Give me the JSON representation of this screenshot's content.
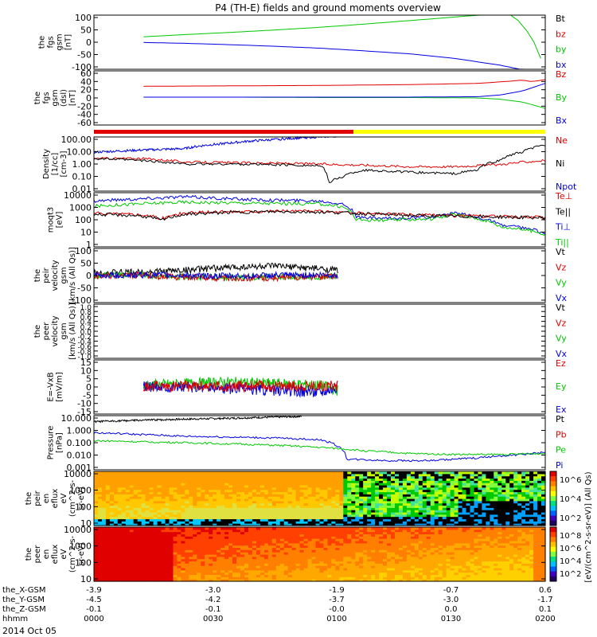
{
  "title": "P4 (TH-E) fields and ground moments overview",
  "date_label": "2014 Oct 05",
  "colors": {
    "black": "#000000",
    "red": "#e00000",
    "green": "#00c800",
    "blue": "#0000e0",
    "yellow": "#ffff00"
  },
  "chart_data": [
    {
      "type": "line",
      "panel": "fgs-gsm",
      "ylabel": [
        "the",
        "fgs",
        "gsm",
        "[nT]"
      ],
      "yticks": [
        "100",
        "50",
        "0",
        "-50",
        "-100"
      ],
      "ylim": [
        -100,
        100
      ],
      "legend": [
        {
          "name": "Bt",
          "color": "black"
        },
        {
          "name": "bz",
          "color": "red"
        },
        {
          "name": "by",
          "color": "green"
        },
        {
          "name": "bx",
          "color": "blue"
        }
      ],
      "series": [
        {
          "name": "by",
          "color": "green",
          "x": [
            0.11,
            0.2,
            0.3,
            0.4,
            0.5,
            0.6,
            0.7,
            0.8,
            0.9,
            0.95,
            0.975
          ],
          "y": [
            20,
            28,
            36,
            45,
            55,
            67,
            80,
            93,
            106,
            110,
            100
          ]
        },
        {
          "name": "bx",
          "color": "blue",
          "x": [
            0.11,
            0.2,
            0.3,
            0.4,
            0.5,
            0.6,
            0.7,
            0.8,
            0.9,
            0.95,
            0.975
          ],
          "y": [
            -1,
            -4,
            -9,
            -15,
            -22,
            -32,
            -43,
            -60,
            -85,
            -102,
            -105
          ]
        },
        {
          "name": "by",
          "color": "green",
          "x": [
            0.915,
            0.94,
            0.96,
            0.975,
            0.99
          ],
          "y": [
            110,
            80,
            40,
            0,
            -60
          ]
        }
      ]
    },
    {
      "type": "line",
      "panel": "fgs-gsm-dsl",
      "ylabel": [
        "the",
        "fgs",
        "gsm",
        "(dsl)",
        "[nT]"
      ],
      "yticks": [
        "60",
        "40",
        "20",
        "0",
        "-20",
        "-40",
        "-60"
      ],
      "ylim": [
        -70,
        60
      ],
      "legend": [
        {
          "name": "Bz",
          "color": "red"
        },
        {
          "name": "By",
          "color": "green"
        },
        {
          "name": "Bx",
          "color": "blue"
        }
      ],
      "series": [
        {
          "name": "Bz",
          "color": "red",
          "x": [
            0.11,
            0.3,
            0.5,
            0.7,
            0.85,
            0.92,
            0.95,
            0.97,
            1.0
          ],
          "y": [
            23,
            24,
            25,
            27,
            30,
            35,
            38,
            34,
            39
          ]
        },
        {
          "name": "By",
          "color": "green",
          "x": [
            0.11,
            0.3,
            0.5,
            0.7,
            0.85,
            0.9,
            0.95,
            1.0
          ],
          "y": [
            -3,
            -3,
            -4,
            -4,
            -5,
            -8,
            -15,
            -30
          ]
        },
        {
          "name": "Bx",
          "color": "blue",
          "x": [
            0.11,
            0.3,
            0.5,
            0.7,
            0.85,
            0.9,
            0.95,
            1.0
          ],
          "y": [
            -3,
            -3,
            -3,
            -3,
            -2,
            2,
            12,
            30
          ]
        }
      ],
      "bar": [
        {
          "x0": 0.0,
          "x1": 0.575,
          "color": "red"
        },
        {
          "x0": 0.575,
          "x1": 1.0,
          "color": "yellow"
        }
      ]
    },
    {
      "type": "line",
      "panel": "density",
      "log": true,
      "ylabel": [
        "Density",
        "[1/cc]",
        "[cm-3]"
      ],
      "yticks": [
        "100.00",
        "10.00",
        "1.00",
        "0.10",
        "0.01"
      ],
      "ylim": [
        0.005,
        200
      ],
      "legend": [
        {
          "name": "Ne",
          "color": "red"
        },
        {
          "name": "Ni",
          "color": "black"
        },
        {
          "name": "Npot",
          "color": "blue"
        }
      ],
      "series": [
        {
          "name": "Npot",
          "color": "blue",
          "x": [
            0.0,
            0.1,
            0.2,
            0.3,
            0.4,
            0.5,
            0.55
          ],
          "y": [
            10,
            15,
            20,
            60,
            120,
            200,
            250
          ]
        },
        {
          "name": "Ne",
          "color": "red",
          "x": [
            0.0,
            0.1,
            0.2,
            0.3,
            0.4,
            0.5,
            0.6,
            0.7,
            0.8,
            0.9,
            1.0
          ],
          "y": [
            3,
            3,
            1.5,
            1.3,
            1.2,
            1.0,
            0.8,
            0.6,
            0.6,
            0.9,
            2
          ]
        },
        {
          "name": "Ni",
          "color": "black",
          "x": [
            0.0,
            0.1,
            0.2,
            0.3,
            0.4,
            0.5,
            0.52,
            0.55,
            0.6,
            0.7,
            0.8,
            0.85,
            0.9,
            0.95,
            1.0
          ],
          "y": [
            3,
            2,
            1,
            1,
            0.9,
            0.7,
            0.02,
            0.08,
            0.3,
            0.2,
            0.15,
            0.3,
            2,
            10,
            40
          ]
        }
      ]
    },
    {
      "type": "line",
      "panel": "temperature",
      "log": true,
      "ylabel": [
        "moqt3",
        "[eV]"
      ],
      "yticks": [
        "10000",
        "1000",
        "100",
        "10",
        "1"
      ],
      "ylim": [
        1,
        10000
      ],
      "legend": [
        {
          "name": "Te⊥",
          "color": "red"
        },
        {
          "name": "Te||",
          "color": "black"
        },
        {
          "name": "Ti⊥",
          "color": "blue"
        },
        {
          "name": "Ti||",
          "color": "green"
        }
      ],
      "series": [
        {
          "name": "Ti⊥",
          "color": "blue",
          "x": [
            0.0,
            0.1,
            0.2,
            0.3,
            0.4,
            0.5,
            0.55,
            0.58,
            0.65,
            0.75,
            0.8,
            0.85,
            0.9,
            1.0
          ],
          "y": [
            2500,
            3500,
            5000,
            3500,
            2800,
            2500,
            1500,
            150,
            120,
            150,
            300,
            150,
            40,
            10
          ]
        },
        {
          "name": "Ti||",
          "color": "green",
          "x": [
            0.0,
            0.1,
            0.2,
            0.3,
            0.4,
            0.5,
            0.55,
            0.58,
            0.65,
            0.75,
            0.8,
            0.85,
            0.9,
            1.0
          ],
          "y": [
            1000,
            1500,
            2000,
            1800,
            1600,
            1500,
            900,
            100,
            90,
            120,
            250,
            120,
            30,
            8
          ]
        },
        {
          "name": "Te⊥",
          "color": "red",
          "x": [
            0.0,
            0.1,
            0.15,
            0.2,
            0.3,
            0.4,
            0.5,
            0.6,
            0.7,
            0.8,
            0.9,
            1.0
          ],
          "y": [
            300,
            250,
            120,
            300,
            400,
            450,
            420,
            300,
            230,
            200,
            170,
            150
          ]
        },
        {
          "name": "Te||",
          "color": "black",
          "x": [
            0.0,
            0.1,
            0.15,
            0.2,
            0.3,
            0.4,
            0.5,
            0.6,
            0.7,
            0.8,
            0.9,
            1.0
          ],
          "y": [
            250,
            200,
            90,
            250,
            350,
            400,
            380,
            280,
            210,
            180,
            160,
            140
          ]
        }
      ]
    },
    {
      "type": "line",
      "panel": "peir-velocity",
      "ylabel": [
        "the",
        "peir",
        "velocity",
        "gsm",
        "[km/s (All Qs)]"
      ],
      "yticks": [
        "100",
        "50",
        "0",
        "-50",
        "-100"
      ],
      "ylim": [
        -100,
        100
      ],
      "legend": [
        {
          "name": "Vt",
          "color": "black"
        },
        {
          "name": "Vz",
          "color": "red"
        },
        {
          "name": "Vy",
          "color": "green"
        },
        {
          "name": "Vx",
          "color": "blue"
        }
      ],
      "series": [
        {
          "name": "Vt",
          "color": "black",
          "x": [
            0.0,
            0.1,
            0.2,
            0.3,
            0.4,
            0.5,
            0.54
          ],
          "y": [
            10,
            12,
            20,
            30,
            35,
            25,
            20
          ]
        },
        {
          "name": "Vy",
          "color": "green",
          "x": [
            0.0,
            0.1,
            0.2,
            0.3,
            0.4,
            0.5,
            0.54
          ],
          "y": [
            0,
            2,
            -5,
            -8,
            -6,
            -4,
            0
          ]
        },
        {
          "name": "Vz",
          "color": "red",
          "x": [
            0.0,
            0.1,
            0.2,
            0.3,
            0.4,
            0.5,
            0.54
          ],
          "y": [
            -2,
            0,
            -6,
            -10,
            -8,
            -5,
            -2
          ]
        },
        {
          "name": "Vx",
          "color": "blue",
          "x": [
            0.0,
            0.1,
            0.2,
            0.3,
            0.4,
            0.5,
            0.54
          ],
          "y": [
            0,
            2,
            0,
            -2,
            0,
            2,
            0
          ]
        }
      ]
    },
    {
      "type": "line",
      "panel": "peer-velocity",
      "ylabel": [
        "the",
        "peer",
        "velocity",
        "gsm",
        "[km/s (All Qs)]"
      ],
      "yticks": [
        "1.0",
        "0.8",
        "0.6",
        "0.4",
        "0.2",
        "0.0",
        "-0.2",
        "-0.4",
        "-0.6",
        "-0.8",
        "-1.0"
      ],
      "ylim": [
        -1,
        1
      ],
      "legend": [
        {
          "name": "Vt",
          "color": "black"
        },
        {
          "name": "Vz",
          "color": "red"
        },
        {
          "name": "Vy",
          "color": "green"
        },
        {
          "name": "Vx",
          "color": "blue"
        }
      ],
      "series": []
    },
    {
      "type": "line",
      "panel": "efield",
      "ylabel": [
        "E=-VxB",
        "[mV/m]"
      ],
      "yticks": [
        "15",
        "10",
        "5",
        "0",
        "-5",
        "-10",
        "-15"
      ],
      "ylim": [
        -17,
        17
      ],
      "legend": [
        {
          "name": "Ez",
          "color": "red"
        },
        {
          "name": "Ey",
          "color": "green"
        },
        {
          "name": "Ex",
          "color": "blue"
        }
      ],
      "series": [
        {
          "name": "Ey",
          "color": "green",
          "x": [
            0.11,
            0.2,
            0.3,
            0.4,
            0.5,
            0.54
          ],
          "y": [
            1,
            2,
            3,
            2,
            1,
            -2
          ]
        },
        {
          "name": "Ex",
          "color": "blue",
          "x": [
            0.11,
            0.2,
            0.3,
            0.4,
            0.5,
            0.54
          ],
          "y": [
            0,
            0,
            -1,
            -2,
            -3,
            0
          ]
        },
        {
          "name": "Ez",
          "color": "red",
          "x": [
            0.11,
            0.54
          ],
          "y": [
            0.5,
            0.5
          ]
        }
      ]
    },
    {
      "type": "line",
      "panel": "pressure",
      "log": true,
      "ylabel": [
        "Pressure",
        "[nPa]"
      ],
      "yticks": [
        "10.000",
        "1.000",
        "0.100",
        "0.010",
        "0.001"
      ],
      "ylim": [
        0.0005,
        20
      ],
      "legend": [
        {
          "name": "Pt",
          "color": "black"
        },
        {
          "name": "Pb",
          "color": "red"
        },
        {
          "name": "Pe",
          "color": "green"
        },
        {
          "name": "Pi",
          "color": "blue"
        }
      ],
      "series": [
        {
          "name": "Pt",
          "color": "black",
          "x": [
            0.0,
            0.1,
            0.2,
            0.3,
            0.4,
            0.46
          ],
          "y": [
            6,
            8,
            10,
            12,
            15,
            17
          ]
        },
        {
          "name": "Pi",
          "color": "blue",
          "x": [
            0.0,
            0.1,
            0.2,
            0.3,
            0.4,
            0.5,
            0.54,
            0.56,
            0.65,
            0.75,
            0.85,
            0.95,
            1.0
          ],
          "y": [
            0.7,
            0.5,
            0.35,
            0.3,
            0.25,
            0.18,
            0.05,
            0.004,
            0.003,
            0.003,
            0.005,
            0.01,
            0.015
          ]
        },
        {
          "name": "Pe",
          "color": "green",
          "x": [
            0.0,
            0.1,
            0.2,
            0.3,
            0.4,
            0.5,
            0.6,
            0.7,
            0.8,
            0.9,
            1.0
          ],
          "y": [
            0.15,
            0.12,
            0.1,
            0.08,
            0.06,
            0.04,
            0.02,
            0.012,
            0.01,
            0.01,
            0.012
          ]
        }
      ]
    },
    {
      "type": "heatmap",
      "panel": "peir-spectrogram",
      "log": true,
      "ylabel": [
        "the",
        "peir",
        "en",
        "eflux",
        "eV",
        "(cm^2-s-",
        "sr-eV)"
      ],
      "yticks": [
        "10000",
        "1000",
        "100",
        "10"
      ],
      "ylim": [
        6,
        20000
      ]
    },
    {
      "type": "heatmap",
      "panel": "peer-spectrogram",
      "log": true,
      "ylabel": [
        "the",
        "peer",
        "en",
        "eflux",
        "eV",
        "(cm^2-s-",
        "sr-eV)"
      ],
      "yticks": [
        "10000",
        "1000",
        "100",
        "10"
      ],
      "ylim": [
        6,
        20000
      ]
    }
  ],
  "colorbar": {
    "title": "[eV/(cm^2-s-sr-eV)] (All Qs)",
    "top_ticks": [
      "10^6",
      "10^4",
      "10^2"
    ],
    "bottom_ticks": [
      "10^8",
      "10^6",
      "10^4",
      "10^2"
    ]
  },
  "xaxis": {
    "rows": [
      {
        "label": "the_X-GSM",
        "values": [
          "-3.9",
          "-3.0",
          "-1.9",
          "-0.7",
          "0.6"
        ]
      },
      {
        "label": "the_Y-GSM",
        "values": [
          "-4.5",
          "-4.2",
          "-3.7",
          "-3.0",
          "-1.7"
        ]
      },
      {
        "label": "the_Z-GSM",
        "values": [
          "-0.1",
          "-0.1",
          "-0.0",
          "0.0",
          "0.1"
        ]
      },
      {
        "label": "hhmm",
        "values": [
          "0000",
          "0030",
          "0100",
          "0130",
          "0200"
        ]
      }
    ]
  }
}
